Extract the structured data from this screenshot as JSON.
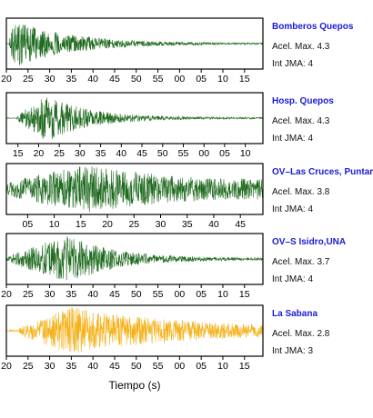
{
  "chart_data": {
    "type": "line",
    "xlabel": "Tiempo (s)",
    "panels": [
      {
        "station": "Bomberos Quepos",
        "accel_text": "Acel. Max. 4.3",
        "jma_text": "Int JMA: 4",
        "color": "#1f6b1f",
        "tick_labels": [
          "20",
          "25",
          "30",
          "35",
          "40",
          "45",
          "50",
          "55",
          "00",
          "05",
          "10",
          "15"
        ],
        "envelope": {
          "onset": 0.01,
          "peak": 0.03,
          "decay": 0.22,
          "floor": 0.02
        }
      },
      {
        "station": "Hosp. Quepos",
        "accel_text": "Acel. Max. 4.3",
        "jma_text": "Int JMA: 4",
        "color": "#1f6b1f",
        "tick_labels": [
          "15",
          "20",
          "25",
          "30",
          "35",
          "40",
          "45",
          "50",
          "55",
          "00",
          "05",
          "10"
        ],
        "envelope": {
          "onset": 0.04,
          "peak": 0.16,
          "decay": 0.16,
          "floor": 0.03
        }
      },
      {
        "station": "OV–Las Cruces, Puntar",
        "accel_text": "Acel. Max. 3.8",
        "jma_text": "Int JMA: 4",
        "color": "#1f6b1f",
        "tick_labels": [
          "05",
          "10",
          "15",
          "20",
          "25",
          "30",
          "35",
          "40",
          "45"
        ],
        "envelope": {
          "onset": 0.0,
          "peak": 0.31,
          "decay": 0.45,
          "floor": 0.22
        }
      },
      {
        "station": "OV–S Isidro,UNA",
        "accel_text": "Acel. Max. 3.7",
        "jma_text": "Int JMA: 4",
        "color": "#1f6b1f",
        "tick_labels": [
          "20",
          "25",
          "30",
          "35",
          "40",
          "45",
          "50",
          "55",
          "00",
          "05",
          "10",
          "15"
        ],
        "envelope": {
          "onset": 0.0,
          "peak": 0.25,
          "decay": 0.18,
          "floor": 0.04
        }
      },
      {
        "station": "La Sabana",
        "accel_text": "Acel. Max. 2.8",
        "jma_text": "Int JMA: 3",
        "color": "#f5b21c",
        "tick_labels": [
          "20",
          "25",
          "30",
          "35",
          "40",
          "45",
          "50",
          "55",
          "00",
          "05",
          "10",
          "15"
        ],
        "envelope": {
          "onset": 0.05,
          "peak": 0.25,
          "decay": 0.45,
          "floor": 0.1
        }
      }
    ]
  }
}
